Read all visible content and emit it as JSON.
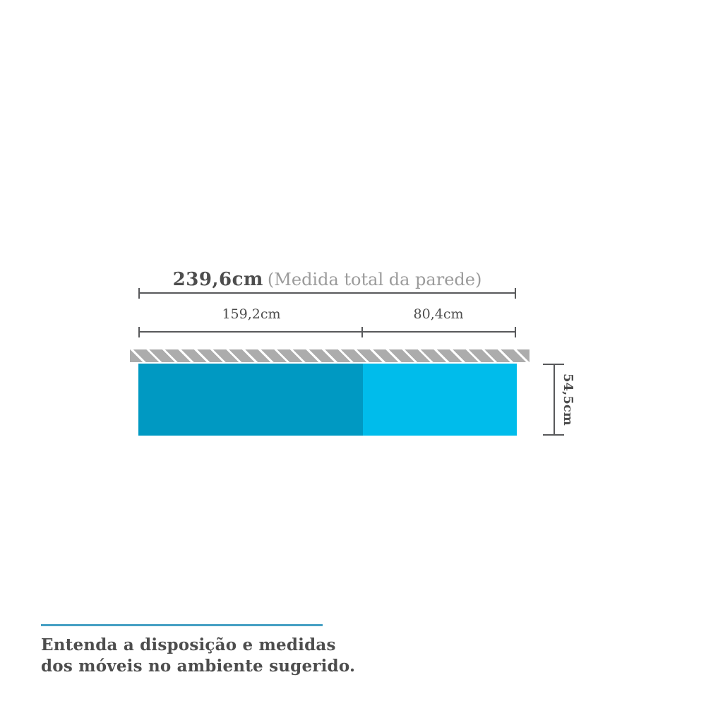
{
  "diagram": {
    "total_dimension": {
      "value": "239,6cm",
      "note": "(Medida total da parede)"
    },
    "segments": [
      {
        "label": "159,2cm"
      },
      {
        "label": "80,4cm"
      }
    ],
    "height_dimension": {
      "label": "54,5cm"
    },
    "colors": {
      "cabinet_left": "#0099c2",
      "cabinet_right": "#00bceb",
      "wall_hatch_gray": "#acacac",
      "dimension_line": "#58595b",
      "text_dark": "#4d4d4d",
      "text_light": "#9b9b9b",
      "divider_blue": "#45a0c4"
    }
  },
  "caption": {
    "line1": "Entenda a disposição e medidas",
    "line2": "dos móveis no ambiente sugerido."
  }
}
